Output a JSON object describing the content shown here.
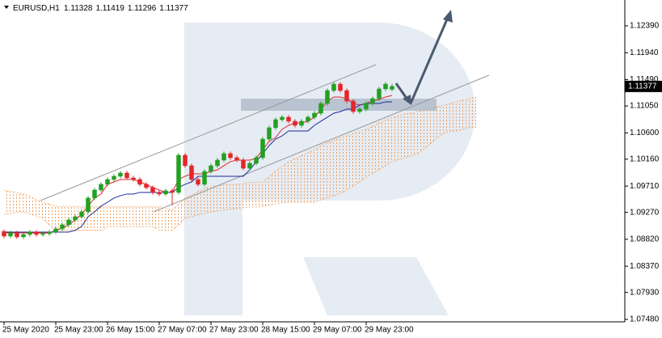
{
  "chart_data": {
    "type": "candlestick",
    "title": "EURUSD,H1",
    "categories": [
      "25 May 2020",
      null,
      null,
      null,
      null,
      null,
      null,
      null,
      "25 May 23:00",
      null,
      null,
      null,
      null,
      null,
      null,
      null,
      "26 May 15:00",
      null,
      null,
      null,
      null,
      null,
      null,
      null,
      "27 May 07:00",
      null,
      null,
      null,
      null,
      null,
      null,
      null,
      "27 May 23:00",
      null,
      null,
      null,
      null,
      null,
      null,
      null,
      "28 May 15:00",
      null,
      null,
      null,
      null,
      null,
      null,
      null,
      "29 May 07:00",
      null,
      null,
      null,
      null,
      null,
      null,
      null,
      "29 May 23:00",
      null,
      null,
      null,
      null,
      null,
      null,
      null,
      null,
      null,
      null,
      null,
      null,
      null,
      null,
      null,
      null,
      null
    ],
    "open": [
      1.0895,
      1.08873,
      1.08927,
      1.0886,
      1.089,
      1.08941,
      1.089,
      1.08914,
      1.08941,
      1.08995,
      1.09063,
      1.09144,
      1.09198,
      1.09279,
      1.09509,
      1.09644,
      1.09739,
      1.0982,
      1.09874,
      1.09928,
      1.09847,
      1.0982,
      1.09739,
      1.09685,
      1.09604,
      1.09577,
      1.09631,
      1.09604,
      1.10226,
      1.1005,
      1.0982,
      1.09739,
      1.09955,
      1.1005,
      1.10145,
      1.10253,
      1.10185,
      1.10145,
      1.10009,
      1.10091,
      1.10185,
      1.10496,
      1.10686,
      1.10821,
      1.10862,
      1.10794,
      1.10726,
      1.10794,
      1.10862,
      1.10929,
      1.11092,
      1.11308,
      1.11416,
      1.11308,
      1.11132,
      1.10956,
      1.10997,
      1.11092,
      1.11173,
      1.11335,
      1.11328,
      null,
      null,
      null,
      null,
      null,
      null,
      null,
      null,
      null,
      null,
      null,
      null,
      null
    ],
    "high": [
      1.08985,
      1.08962,
      1.08962,
      1.08935,
      1.08976,
      1.08976,
      1.08949,
      1.08976,
      1.0903,
      1.09098,
      1.09179,
      1.09233,
      1.09314,
      1.09544,
      1.09679,
      1.09774,
      1.09855,
      1.09909,
      1.09963,
      1.09963,
      1.09882,
      1.09855,
      1.09774,
      1.0972,
      1.09639,
      1.09666,
      1.09666,
      1.10261,
      1.10261,
      1.10085,
      1.09855,
      1.0999,
      1.10085,
      1.1018,
      1.10288,
      1.10288,
      1.1022,
      1.1018,
      1.10126,
      1.1022,
      1.10531,
      1.10721,
      1.10856,
      1.10897,
      1.10897,
      1.10829,
      1.10829,
      1.10897,
      1.10964,
      1.11127,
      1.11343,
      1.11451,
      1.11451,
      1.11343,
      1.11167,
      1.11032,
      1.11127,
      1.11208,
      1.1137,
      1.11451,
      1.11419,
      null,
      null,
      null,
      null,
      null,
      null,
      null,
      null,
      null,
      null,
      null,
      null,
      null
    ],
    "low": [
      1.08838,
      1.08838,
      1.08825,
      1.08825,
      1.08865,
      1.08865,
      1.08865,
      1.08879,
      1.08906,
      1.0896,
      1.09028,
      1.09109,
      1.09163,
      1.09244,
      1.09474,
      1.09609,
      1.09704,
      1.09785,
      1.09839,
      1.09812,
      1.09785,
      1.09704,
      1.0965,
      1.09569,
      1.09542,
      1.09542,
      1.0939,
      1.09569,
      1.10015,
      1.09785,
      1.09704,
      1.09704,
      1.0992,
      1.10015,
      1.1011,
      1.1015,
      1.1011,
      1.09974,
      1.09974,
      1.10056,
      1.1015,
      1.10461,
      1.10651,
      1.10786,
      1.10759,
      1.10691,
      1.10691,
      1.10759,
      1.10827,
      1.10894,
      1.11057,
      1.11273,
      1.11273,
      1.11097,
      1.10921,
      1.10921,
      1.10962,
      1.11057,
      1.11138,
      1.113,
      1.11296,
      null,
      null,
      null,
      null,
      null,
      null,
      null,
      null,
      null,
      null,
      null,
      null,
      null
    ],
    "close": [
      1.08873,
      1.08927,
      1.0886,
      1.089,
      1.08941,
      1.089,
      1.08914,
      1.08941,
      1.08995,
      1.09063,
      1.09144,
      1.09198,
      1.09279,
      1.09509,
      1.09644,
      1.09739,
      1.0982,
      1.09874,
      1.09928,
      1.09847,
      1.0982,
      1.09739,
      1.09685,
      1.09604,
      1.09577,
      1.09631,
      1.09604,
      1.10226,
      1.1005,
      1.0982,
      1.09739,
      1.09955,
      1.1005,
      1.10145,
      1.10253,
      1.10185,
      1.10145,
      1.10009,
      1.10091,
      1.10185,
      1.10496,
      1.10686,
      1.10821,
      1.10862,
      1.10794,
      1.10726,
      1.10794,
      1.10862,
      1.10929,
      1.11092,
      1.11308,
      1.11416,
      1.11308,
      1.11132,
      1.10956,
      1.10997,
      1.11092,
      1.11173,
      1.11335,
      1.11416,
      1.11377,
      null,
      null,
      null,
      null,
      null,
      null,
      null,
      null,
      null,
      null,
      null,
      null,
      null
    ],
    "up_color": "#22a022",
    "down_color": "#e3262b",
    "lines": [
      {
        "color": "#e3262b",
        "values": [
          1.08927,
          1.08927,
          1.08927,
          1.08927,
          1.08927,
          1.08927,
          1.08927,
          1.08927,
          1.08968,
          1.09008,
          1.09063,
          1.09144,
          1.09238,
          1.09374,
          1.09509,
          1.09577,
          1.09739,
          1.09779,
          1.0982,
          1.0982,
          1.0982,
          1.09779,
          1.09739,
          1.09685,
          1.09644,
          1.09604,
          1.09604,
          1.0982,
          1.09874,
          1.09915,
          1.09915,
          1.09915,
          1.09955,
          1.09982,
          1.1005,
          1.10118,
          1.10145,
          1.10145,
          1.10145,
          1.10172,
          1.10321,
          1.10456,
          1.10523,
          1.10659,
          1.10726,
          1.10767,
          1.10767,
          1.10794,
          1.10862,
          1.10997,
          1.11132,
          1.112,
          1.112,
          1.11173,
          1.11092,
          1.11064,
          1.11092,
          1.11132,
          1.11159,
          1.112,
          1.11227,
          null,
          null,
          null,
          null,
          null,
          null,
          null,
          null,
          null,
          null,
          null,
          null,
          null
        ]
      },
      {
        "color": "#1c2a9c",
        "values": [
          1.08941,
          1.08941,
          1.08941,
          1.08941,
          1.08941,
          1.08941,
          1.08941,
          1.08941,
          1.08941,
          1.08941,
          1.08941,
          1.08968,
          1.09036,
          1.09198,
          1.09279,
          1.09374,
          1.09441,
          1.09509,
          1.0955,
          1.09577,
          1.09577,
          1.09604,
          1.09604,
          1.09604,
          1.09604,
          1.09604,
          1.09604,
          1.09685,
          1.09739,
          1.09779,
          1.09874,
          1.09874,
          1.09874,
          1.09874,
          1.09874,
          1.09874,
          1.09874,
          1.09874,
          1.09982,
          1.10118,
          1.10253,
          1.10388,
          1.10496,
          1.1055,
          1.10632,
          1.10632,
          1.10632,
          1.10632,
          1.10726,
          1.10794,
          1.10862,
          1.10929,
          1.10956,
          1.10997,
          1.10997,
          1.11064,
          1.11092,
          1.11092,
          1.11092,
          1.11119,
          1.11119,
          null,
          null,
          null,
          null,
          null,
          null,
          null,
          null,
          null,
          null,
          null,
          null,
          null
        ]
      }
    ],
    "cloud": {
      "color": "#f0a060",
      "span_a": [
        1.0964,
        1.0962,
        1.096,
        1.0958,
        1.0954,
        1.0948,
        1.0944,
        1.0941,
        1.0937,
        1.0937,
        1.0937,
        1.0937,
        1.0937,
        1.0937,
        1.0937,
        1.0937,
        1.0937,
        1.0937,
        1.0937,
        1.0937,
        1.0937,
        1.0937,
        1.0937,
        1.0937,
        1.0937,
        1.0933,
        1.0931,
        1.0941,
        1.0951,
        1.0956,
        1.0962,
        1.0967,
        1.0971,
        1.0971,
        1.0973,
        1.0973,
        1.0974,
        1.0975,
        1.0977,
        1.0977,
        1.0978,
        1.0987,
        1.0996,
        1.1004,
        1.1012,
        1.1017,
        1.1022,
        1.1027,
        1.1032,
        1.1038,
        1.1043,
        1.1047,
        1.1052,
        1.1055,
        1.1059,
        1.1062,
        1.1066,
        1.1071,
        1.1077,
        1.1081,
        1.1086,
        1.1089,
        1.1092,
        1.1093,
        1.1096,
        1.1098,
        1.1101,
        1.1104,
        1.1106,
        1.1109,
        1.1112,
        1.1115,
        1.1117,
        1.112
      ],
      "span_b": [
        1.0924,
        1.0925,
        1.0927,
        1.0928,
        1.0924,
        1.0921,
        1.0917,
        1.0906,
        1.0897,
        1.0897,
        1.0897,
        1.0897,
        1.0897,
        1.0897,
        1.0897,
        1.0897,
        1.0903,
        1.0903,
        1.0903,
        1.0903,
        1.0903,
        1.0903,
        1.0903,
        1.0903,
        1.0897,
        1.0897,
        1.0897,
        1.0906,
        1.0917,
        1.092,
        1.0923,
        1.0925,
        1.0928,
        1.0929,
        1.0931,
        1.0932,
        1.0933,
        1.0935,
        1.0936,
        1.0936,
        1.0937,
        1.0939,
        1.0941,
        1.0943,
        1.0944,
        1.0944,
        1.0944,
        1.0944,
        1.0944,
        1.0948,
        1.0951,
        1.0955,
        1.0958,
        1.0964,
        1.0971,
        1.0978,
        1.0985,
        1.0992,
        1.0998,
        1.1005,
        1.1012,
        1.1015,
        1.1018,
        1.1022,
        1.1025,
        1.1033,
        1.1042,
        1.1051,
        1.1059,
        1.1062,
        1.1063,
        1.1066,
        1.1069,
        1.1069
      ]
    },
    "ylim": [
      1.07439,
      1.12755
    ],
    "yticks": [
      {
        "value": 1.1239,
        "label": "1.12390"
      },
      {
        "value": 1.1194,
        "label": "1.11940"
      },
      {
        "value": 1.1149,
        "label": "1.11490"
      },
      {
        "value": 1.1105,
        "label": "1.11050"
      },
      {
        "value": 1.106,
        "label": "1.10600"
      },
      {
        "value": 1.1016,
        "label": "1.10160"
      },
      {
        "value": 1.0971,
        "label": "1.09710"
      },
      {
        "value": 1.0927,
        "label": "1.09270"
      },
      {
        "value": 1.0882,
        "label": "1.08820"
      },
      {
        "value": 1.0837,
        "label": "1.08370"
      },
      {
        "value": 1.0793,
        "label": "1.07930"
      },
      {
        "value": 1.0748,
        "label": "1.07480"
      }
    ]
  }
}
